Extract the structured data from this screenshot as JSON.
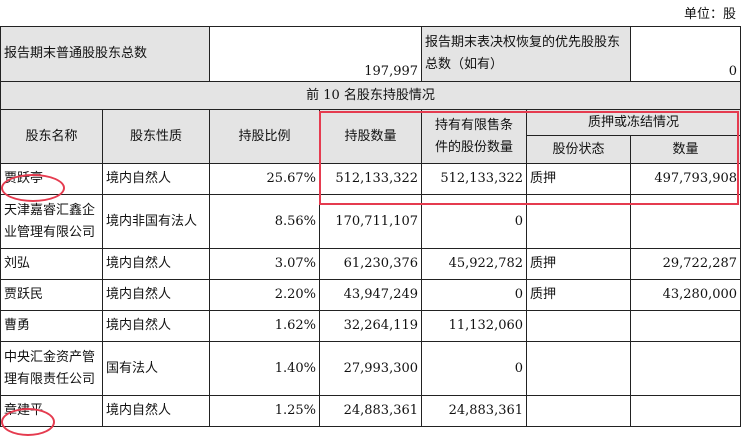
{
  "unit_label": "单位：股",
  "summary": {
    "label1": "报告期末普通股股东总数",
    "value1": "197,997",
    "label2": "报告期末表决权恢复的优先股股东总数（如有）",
    "value2": "0"
  },
  "section_title": "前 10 名股东持股情况",
  "headers": {
    "name": "股东名称",
    "nature": "股东性质",
    "ratio": "持股比例",
    "shares": "持股数量",
    "restricted": "持有有限售条件的股份数量",
    "pledge_group": "质押或冻结情况",
    "status": "股份状态",
    "amount": "数量"
  },
  "rows": [
    {
      "name": "贾跃亭",
      "nature": "境内自然人",
      "ratio": "25.67%",
      "shares": "512,133,322",
      "restricted": "512,133,322",
      "status": "质押",
      "amount": "497,793,908"
    },
    {
      "name": "天津嘉睿汇鑫企业管理有限公司",
      "nature": "境内非国有法人",
      "ratio": "8.56%",
      "shares": "170,711,107",
      "restricted": "0",
      "status": "",
      "amount": ""
    },
    {
      "name": "刘弘",
      "nature": "境内自然人",
      "ratio": "3.07%",
      "shares": "61,230,376",
      "restricted": "45,922,782",
      "status": "质押",
      "amount": "29,722,287"
    },
    {
      "name": "贾跃民",
      "nature": "境内自然人",
      "ratio": "2.20%",
      "shares": "43,947,249",
      "restricted": "0",
      "status": "质押",
      "amount": "43,280,000"
    },
    {
      "name": "曹勇",
      "nature": "境内自然人",
      "ratio": "1.62%",
      "shares": "32,264,119",
      "restricted": "11,132,060",
      "status": "",
      "amount": ""
    },
    {
      "name": "中央汇金资产管理有限责任公司",
      "nature": "国有法人",
      "ratio": "1.40%",
      "shares": "27,993,300",
      "restricted": "0",
      "status": "",
      "amount": ""
    },
    {
      "name": "章建平",
      "nature": "境内自然人",
      "ratio": "1.25%",
      "shares": "24,883,361",
      "restricted": "24,883,361",
      "status": "",
      "amount": ""
    }
  ],
  "annotation_color": "#e53b4f"
}
